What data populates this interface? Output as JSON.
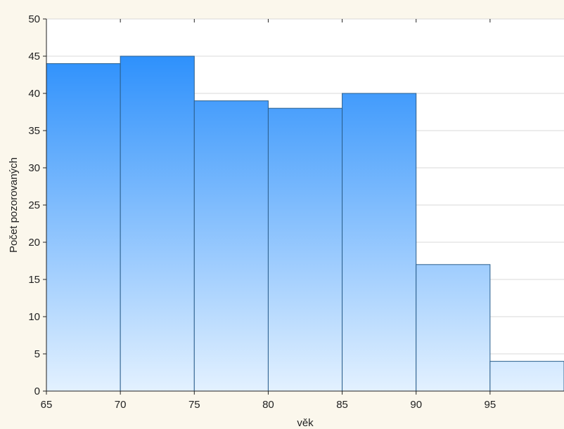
{
  "chart_data": {
    "type": "bar",
    "subtype": "histogram",
    "title": "",
    "xlabel": "věk",
    "ylabel": "Počet pozorovaných",
    "bins": [
      {
        "from": 65,
        "to": 70,
        "value": 44
      },
      {
        "from": 70,
        "to": 75,
        "value": 45
      },
      {
        "from": 75,
        "to": 80,
        "value": 39
      },
      {
        "from": 80,
        "to": 85,
        "value": 38
      },
      {
        "from": 85,
        "to": 90,
        "value": 40
      },
      {
        "from": 90,
        "to": 95,
        "value": 17
      },
      {
        "from": 95,
        "to": 100,
        "value": 4
      }
    ],
    "xlim": [
      65,
      100
    ],
    "ylim": [
      0,
      50
    ],
    "xticks": [
      65,
      70,
      75,
      80,
      85,
      90,
      95
    ],
    "yticks": [
      0,
      5,
      10,
      15,
      20,
      25,
      30,
      35,
      40,
      45,
      50
    ],
    "grid": "horizontal",
    "legend": "none",
    "colors": {
      "bar_top": "#1a86fb",
      "bar_bottom": "#e3f1ff",
      "bar_stroke": "#2a5e8c",
      "background": "#fbf7ec",
      "plot_background": "#ffffff",
      "grid": "#d9d9d9",
      "axis": "#222222"
    }
  }
}
